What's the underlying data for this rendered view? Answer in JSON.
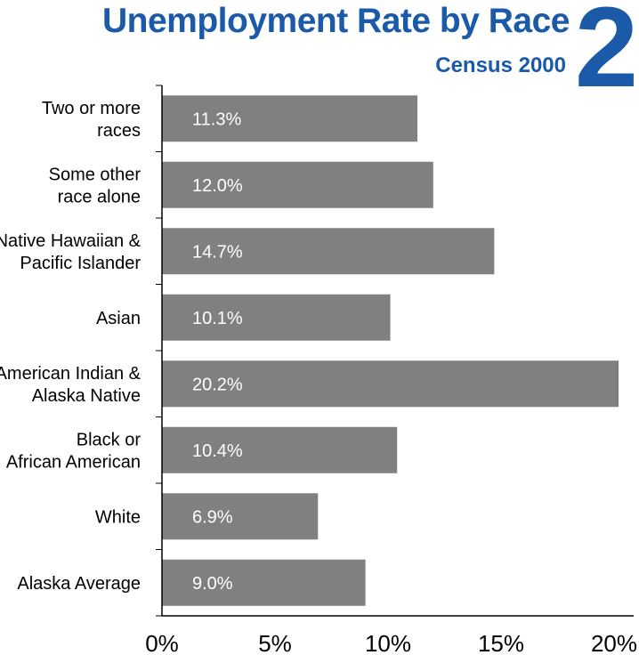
{
  "header": {
    "title": "Unemployment Rate by Race",
    "subtitle": "Census 2000",
    "badge_number": "2"
  },
  "colors": {
    "title_blue": "#1a5aa8",
    "bar_gray": "#808080",
    "axis_black": "#000000",
    "label_white": "#ffffff"
  },
  "chart_data": {
    "type": "bar",
    "orientation": "horizontal",
    "categories": [
      "Two or more races",
      "Some other race alone",
      "Native Hawaiian & Pacific Islander",
      "Asian",
      "American Indian & Alaska Native",
      "Black or African American",
      "White",
      "Alaska Average"
    ],
    "category_label_lines": [
      [
        "Two or more",
        "races"
      ],
      [
        "Some other",
        "race alone"
      ],
      [
        "Native Hawaiian &",
        "Pacific Islander"
      ],
      [
        "Asian"
      ],
      [
        "American Indian &",
        "Alaska Native"
      ],
      [
        "Black or",
        "African American"
      ],
      [
        "White"
      ],
      [
        "Alaska Average"
      ]
    ],
    "values": [
      11.3,
      12.0,
      14.7,
      10.1,
      20.2,
      10.4,
      6.9,
      9.0
    ],
    "value_labels": [
      "11.3%",
      "12.0%",
      "14.7%",
      "10.1%",
      "20.2%",
      "10.4%",
      "6.9%",
      "9.0%"
    ],
    "xlim": [
      0,
      20
    ],
    "xticks": [
      0,
      5,
      10,
      15,
      20
    ],
    "xtick_labels": [
      "0%",
      "5%",
      "10%",
      "15%",
      "20%"
    ],
    "grid": false,
    "legend": false
  }
}
